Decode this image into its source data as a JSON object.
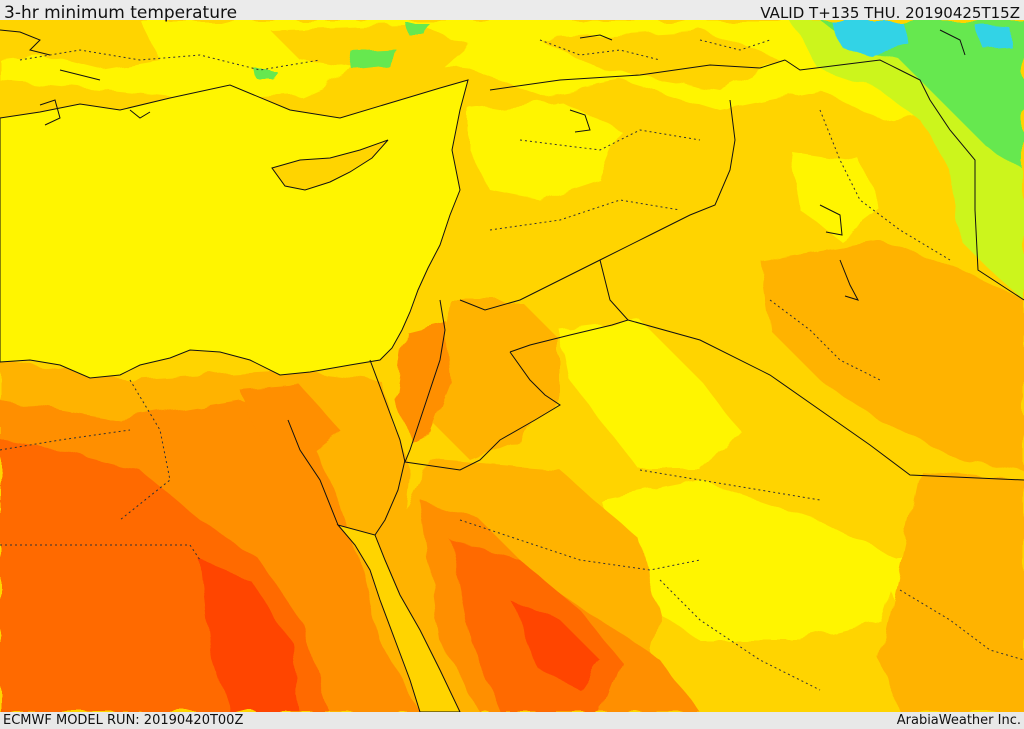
{
  "header": {
    "title": "3-hr minimum temperature",
    "valid": "VALID T+135 THU. 20190425T15Z"
  },
  "footer": {
    "model_run": "ECMWF MODEL RUN: 20190420T00Z",
    "credit": "ArabiaWeather Inc."
  },
  "map": {
    "field": "3-hr minimum temperature",
    "region": "Eastern Mediterranean and Middle East",
    "palette": {
      "cyan": "#33d3e6",
      "green": "#66e84f",
      "lime": "#ccf51f",
      "yellow": "#fff500",
      "gold": "#ffd400",
      "amber": "#ffb300",
      "orange": "#ff8f00",
      "red_orange": "#ff6a00",
      "red": "#ff4400"
    },
    "boundary_color": "#000000"
  }
}
